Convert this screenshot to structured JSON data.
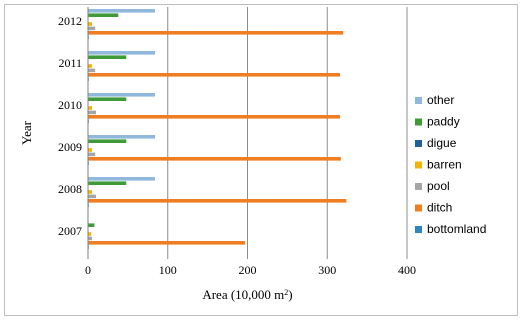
{
  "chart_data": {
    "type": "bar",
    "orientation": "horizontal",
    "categories": [
      "2007",
      "2008",
      "2009",
      "2010",
      "2011",
      "2012"
    ],
    "series": [
      {
        "name": "other",
        "color": "#8fb8dc",
        "values": [
          0,
          84,
          84,
          84,
          84,
          84
        ]
      },
      {
        "name": "paddy",
        "color": "#3f9b3a",
        "values": [
          8,
          48,
          48,
          48,
          48,
          38
        ]
      },
      {
        "name": "digue",
        "color": "#1f5f9e",
        "values": [
          0,
          0,
          0,
          0,
          0,
          0
        ]
      },
      {
        "name": "barren",
        "color": "#f2b400",
        "values": [
          4,
          5,
          5,
          5,
          5,
          5
        ]
      },
      {
        "name": "pool",
        "color": "#a6a6a6",
        "values": [
          5,
          10,
          9,
          10,
          9,
          9
        ]
      },
      {
        "name": "ditch",
        "color": "#ef7d22",
        "values": [
          197,
          324,
          317,
          316,
          316,
          320
        ]
      },
      {
        "name": "bottomland",
        "color": "#2e86c1",
        "values": [
          1,
          1,
          1,
          1,
          1,
          1
        ]
      }
    ],
    "xlabel_prefix": "Area (10,000 m",
    "xlabel_sup": "2",
    "xlabel_suffix": ")",
    "ylabel": "Year",
    "xlim": [
      0,
      400
    ],
    "xticks": [
      "0",
      "100",
      "200",
      "300",
      "400"
    ],
    "grid": "vertical major gridlines",
    "legend_position": "right"
  }
}
